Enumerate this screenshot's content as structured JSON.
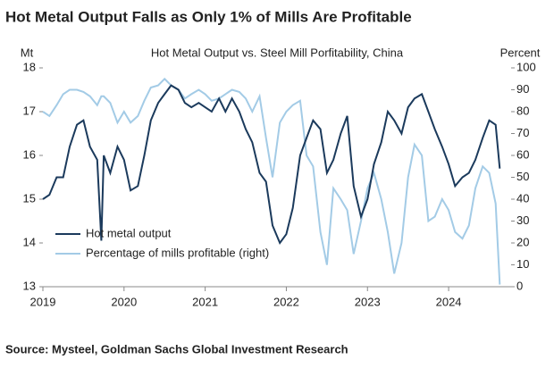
{
  "chart_data": {
    "type": "line",
    "title": "Hot Metal Output Falls as Only 1% of Mills Are Profitable",
    "subtitle": "Hot Metal Output vs. Steel Mill Porfitability, China",
    "y_label": "Mt",
    "y2_label": "Percent",
    "source": "Source: Mysteel, Goldman Sachs Global Investment Research",
    "x": [
      2019.0,
      2019.08,
      2019.17,
      2019.25,
      2019.33,
      2019.42,
      2019.5,
      2019.58,
      2019.67,
      2019.72,
      2019.75,
      2019.83,
      2019.92,
      2020.0,
      2020.08,
      2020.17,
      2020.25,
      2020.33,
      2020.42,
      2020.5,
      2020.58,
      2020.67,
      2020.75,
      2020.83,
      2020.92,
      2021.0,
      2021.08,
      2021.17,
      2021.25,
      2021.33,
      2021.42,
      2021.5,
      2021.58,
      2021.67,
      2021.75,
      2021.83,
      2021.92,
      2022.0,
      2022.08,
      2022.17,
      2022.25,
      2022.33,
      2022.42,
      2022.5,
      2022.58,
      2022.67,
      2022.75,
      2022.83,
      2022.92,
      2023.0,
      2023.08,
      2023.17,
      2023.25,
      2023.33,
      2023.42,
      2023.5,
      2023.58,
      2023.67,
      2023.75,
      2023.83,
      2023.92,
      2024.0,
      2024.08,
      2024.17,
      2024.25,
      2024.33,
      2024.42,
      2024.5,
      2024.58,
      2024.63
    ],
    "series": [
      {
        "name": "Hot metal output",
        "color": "#1b3a5c",
        "axis": "y",
        "values": [
          15.0,
          15.1,
          15.5,
          15.5,
          16.2,
          16.7,
          16.8,
          16.2,
          15.9,
          14.05,
          16.0,
          15.6,
          16.2,
          15.9,
          15.2,
          15.3,
          16.0,
          16.8,
          17.2,
          17.4,
          17.6,
          17.5,
          17.2,
          17.1,
          17.2,
          17.1,
          17.0,
          17.3,
          17.0,
          17.3,
          17.0,
          16.6,
          16.3,
          15.6,
          15.4,
          14.4,
          14.0,
          14.2,
          14.8,
          16.0,
          16.4,
          16.8,
          16.6,
          15.6,
          15.9,
          16.5,
          16.9,
          15.3,
          14.6,
          15.0,
          15.8,
          16.3,
          17.0,
          16.8,
          16.5,
          17.1,
          17.3,
          17.4,
          17.0,
          16.6,
          16.2,
          15.8,
          15.3,
          15.5,
          15.6,
          15.9,
          16.4,
          16.8,
          16.7,
          15.7
        ]
      },
      {
        "name": "Percentage of mills profitable (right)",
        "color": "#a3cbe6",
        "axis": "y2",
        "values": [
          80,
          78,
          83,
          88,
          90,
          90,
          89,
          87,
          83,
          87,
          87,
          84,
          75,
          80,
          75,
          78,
          85,
          91,
          92,
          95,
          92,
          90,
          86,
          88,
          90,
          88,
          85,
          86,
          88,
          90,
          89,
          86,
          80,
          87,
          68,
          50,
          75,
          80,
          83,
          85,
          60,
          55,
          25,
          10,
          45,
          40,
          35,
          15,
          30,
          45,
          52,
          40,
          25,
          6,
          20,
          50,
          65,
          60,
          30,
          32,
          40,
          35,
          25,
          22,
          28,
          45,
          55,
          52,
          38,
          1
        ]
      }
    ],
    "xlim": [
      2019,
      2024.77
    ],
    "xticks": [
      2019,
      2020,
      2021,
      2022,
      2023,
      2024
    ],
    "ylim": [
      13,
      18
    ],
    "yticks": [
      13,
      14,
      15,
      16,
      17,
      18
    ],
    "y2lim": [
      0,
      100
    ],
    "y2ticks": [
      0,
      10,
      20,
      30,
      40,
      50,
      60,
      70,
      80,
      90,
      100
    ],
    "legend": "lower-left"
  }
}
